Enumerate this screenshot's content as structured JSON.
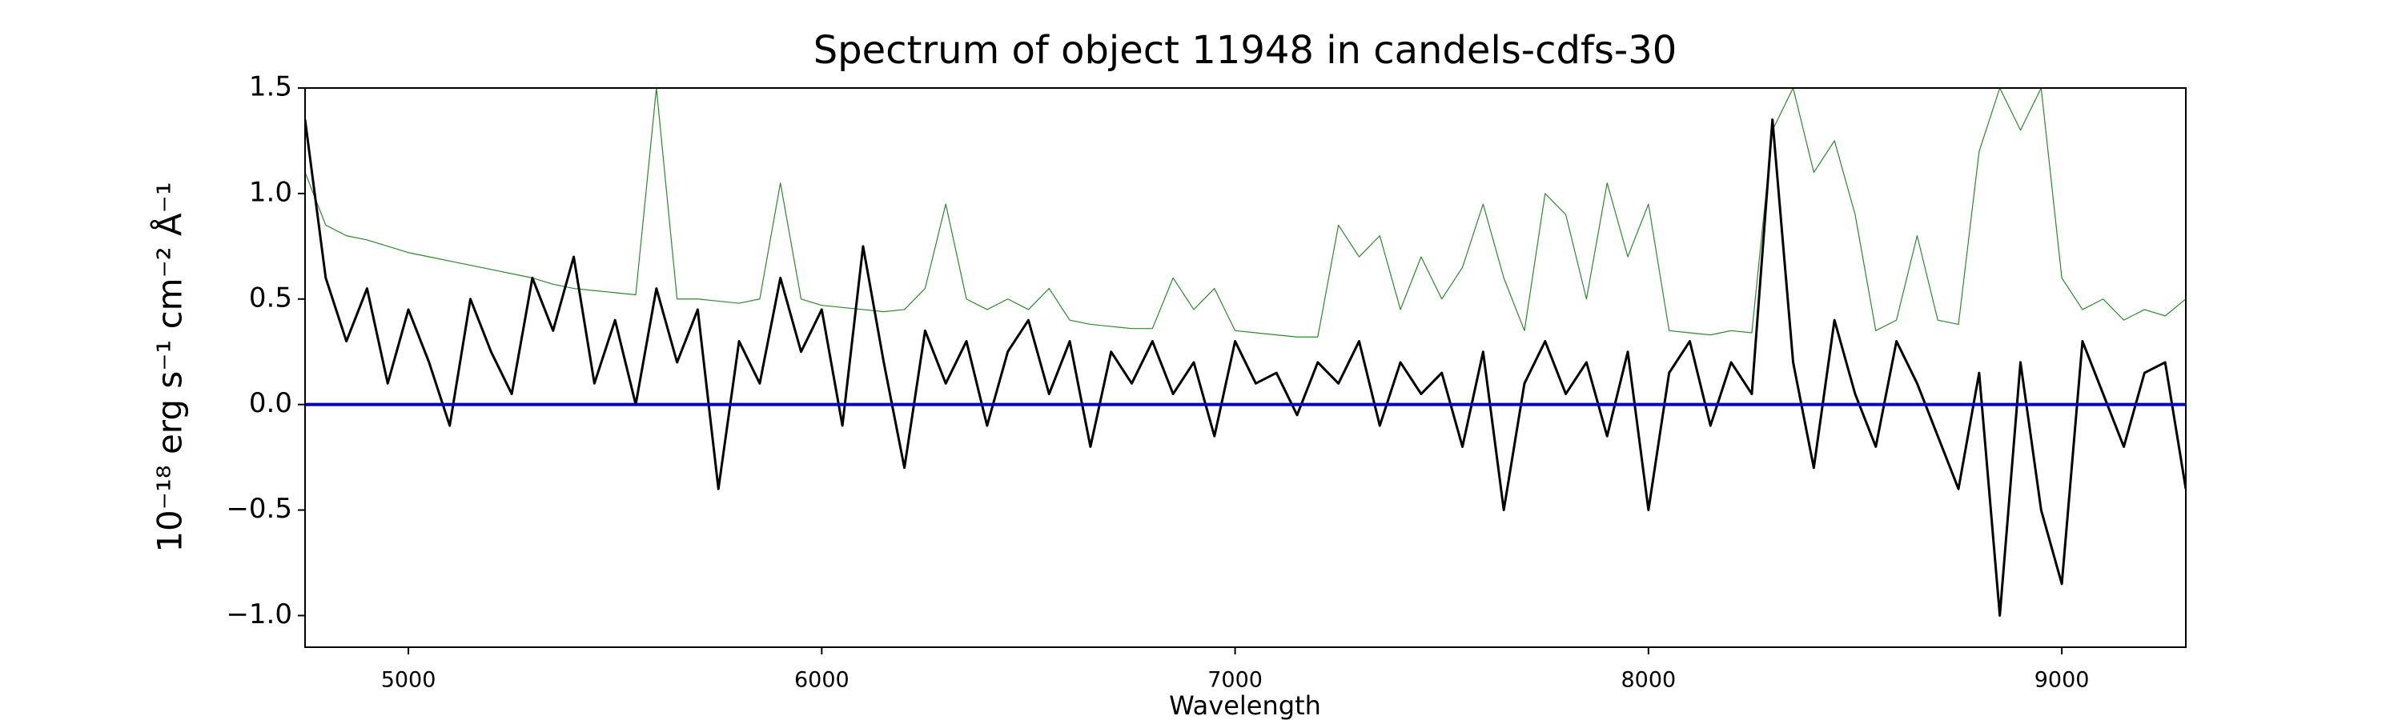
{
  "chart_data": {
    "type": "line",
    "title": "Spectrum of object 11948 in candels-cdfs-30",
    "xlabel": "Wavelength",
    "ylabel": "10⁻¹⁸ erg s⁻¹ cm⁻² Å⁻¹",
    "x": [
      4750,
      4800,
      4850,
      4900,
      4950,
      5000,
      5050,
      5100,
      5150,
      5200,
      5250,
      5300,
      5350,
      5400,
      5450,
      5500,
      5550,
      5600,
      5650,
      5700,
      5750,
      5800,
      5850,
      5900,
      5950,
      6000,
      6050,
      6100,
      6150,
      6200,
      6250,
      6300,
      6350,
      6400,
      6450,
      6500,
      6550,
      6600,
      6650,
      6700,
      6750,
      6800,
      6850,
      6900,
      6950,
      7000,
      7050,
      7100,
      7150,
      7200,
      7250,
      7300,
      7350,
      7400,
      7450,
      7500,
      7550,
      7600,
      7650,
      7700,
      7750,
      7800,
      7850,
      7900,
      7950,
      8000,
      8050,
      8100,
      8150,
      8200,
      8250,
      8300,
      8350,
      8400,
      8450,
      8500,
      8550,
      8600,
      8650,
      8700,
      8750,
      8800,
      8850,
      8900,
      8950,
      9000,
      9050,
      9100,
      9150,
      9200,
      9250,
      9300
    ],
    "series": [
      {
        "color": "#2a8a2a",
        "width": 1.2,
        "values": [
          1.1,
          0.85,
          0.8,
          0.78,
          0.75,
          0.72,
          0.7,
          0.68,
          0.66,
          0.64,
          0.62,
          0.6,
          0.57,
          0.55,
          0.54,
          0.53,
          0.52,
          1.5,
          0.5,
          0.5,
          0.49,
          0.48,
          0.5,
          1.05,
          0.5,
          0.47,
          0.46,
          0.45,
          0.44,
          0.45,
          0.55,
          0.95,
          0.5,
          0.45,
          0.5,
          0.45,
          0.55,
          0.4,
          0.38,
          0.37,
          0.36,
          0.36,
          0.6,
          0.45,
          0.55,
          0.35,
          0.34,
          0.33,
          0.32,
          0.32,
          0.85,
          0.7,
          0.8,
          0.45,
          0.7,
          0.5,
          0.65,
          0.95,
          0.6,
          0.35,
          1.0,
          0.9,
          0.5,
          1.05,
          0.7,
          0.95,
          0.35,
          0.34,
          0.33,
          0.35,
          0.34,
          1.3,
          1.5,
          1.1,
          1.25,
          0.9,
          0.35,
          0.4,
          0.8,
          0.4,
          0.38,
          1.2,
          1.5,
          1.3,
          1.5,
          0.6,
          0.45,
          0.5,
          0.4,
          0.45,
          0.42,
          0.5
        ]
      },
      {
        "color": "#000000",
        "width": 3,
        "values": [
          1.35,
          0.6,
          0.3,
          0.55,
          0.1,
          0.45,
          0.2,
          -0.1,
          0.5,
          0.25,
          0.05,
          0.6,
          0.35,
          0.7,
          0.1,
          0.4,
          0.0,
          0.55,
          0.2,
          0.45,
          -0.4,
          0.3,
          0.1,
          0.6,
          0.25,
          0.45,
          -0.1,
          0.75,
          0.2,
          -0.3,
          0.35,
          0.1,
          0.3,
          -0.1,
          0.25,
          0.4,
          0.05,
          0.3,
          -0.2,
          0.25,
          0.1,
          0.3,
          0.05,
          0.2,
          -0.15,
          0.3,
          0.1,
          0.15,
          -0.05,
          0.2,
          0.1,
          0.3,
          -0.1,
          0.2,
          0.05,
          0.15,
          -0.2,
          0.25,
          -0.5,
          0.1,
          0.3,
          0.05,
          0.2,
          -0.15,
          0.25,
          -0.5,
          0.15,
          0.3,
          -0.1,
          0.2,
          0.05,
          1.35,
          0.2,
          -0.3,
          0.4,
          0.05,
          -0.2,
          0.3,
          0.1,
          -0.15,
          -0.4,
          0.15,
          -1.0,
          0.2,
          -0.5,
          -0.85,
          0.3,
          0.05,
          -0.2,
          0.15,
          0.2,
          -0.4
        ]
      },
      {
        "color": "#0000cc",
        "width": 4,
        "values": [
          0,
          0,
          0,
          0,
          0,
          0,
          0,
          0,
          0,
          0,
          0,
          0,
          0,
          0,
          0,
          0,
          0,
          0,
          0,
          0,
          0,
          0,
          0,
          0,
          0,
          0,
          0,
          0,
          0,
          0,
          0,
          0,
          0,
          0,
          0,
          0,
          0,
          0,
          0,
          0,
          0,
          0,
          0,
          0,
          0,
          0,
          0,
          0,
          0,
          0,
          0,
          0,
          0,
          0,
          0,
          0,
          0,
          0,
          0,
          0,
          0,
          0,
          0,
          0,
          0,
          0,
          0,
          0,
          0,
          0,
          0,
          0,
          0,
          0,
          0,
          0,
          0,
          0,
          0,
          0,
          0,
          0,
          0,
          0,
          0,
          0,
          0,
          0,
          0,
          0,
          0,
          0
        ]
      }
    ],
    "xlim": [
      4750,
      9300
    ],
    "ylim": [
      -1.15,
      1.5
    ],
    "xticks": [
      5000,
      6000,
      7000,
      8000,
      9000
    ],
    "yticks": [
      {
        "value": -1.0,
        "label": "−1.0"
      },
      {
        "value": -0.5,
        "label": "−0.5"
      },
      {
        "value": 0.0,
        "label": "0.0"
      },
      {
        "value": 0.5,
        "label": "0.5"
      },
      {
        "value": 1.0,
        "label": "1.0"
      },
      {
        "value": 1.5,
        "label": "1.5"
      }
    ],
    "grid": false
  }
}
